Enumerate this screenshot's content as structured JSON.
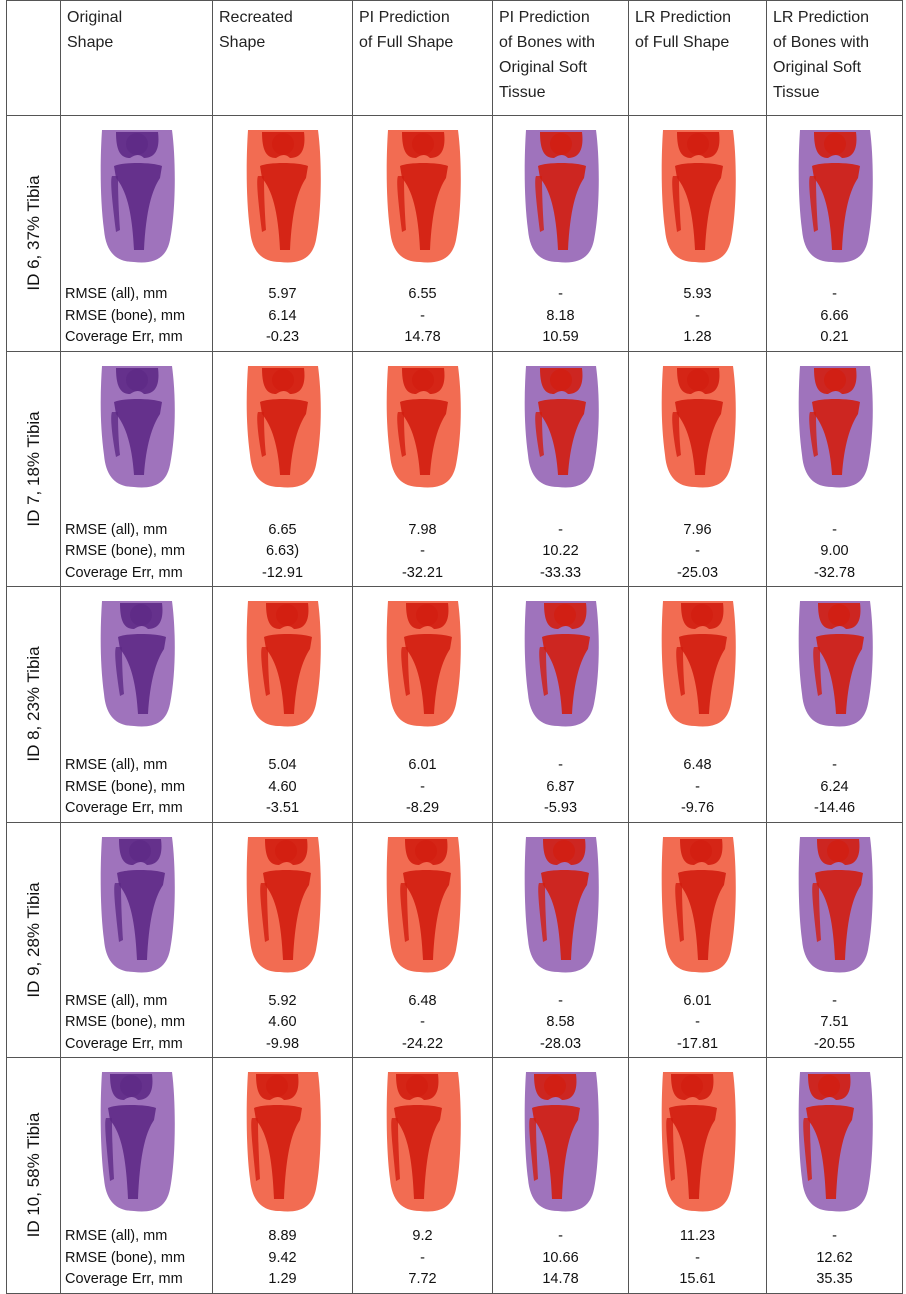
{
  "headers": [
    "Original\nShape",
    "Recreated\nShape",
    "PI Prediction\nof Full Shape",
    "PI Prediction\nof Bones with\nOriginal Soft\nTissue",
    "LR Prediction\nof Full Shape",
    "LR Prediction\nof Bones with\nOriginal Soft\nTissue"
  ],
  "metric_labels": [
    "RMSE (all), mm",
    "RMSE (bone), mm",
    "Coverage Err, mm"
  ],
  "rows": [
    {
      "label": "ID 6, 37% Tibia",
      "rmse_all": [
        "5.97",
        "6.55",
        "-",
        "5.93",
        "-"
      ],
      "rmse_bone": [
        "6.14",
        "-",
        "8.18",
        "-",
        "6.66"
      ],
      "coverage": [
        "-0.23",
        "14.78",
        "10.59",
        "1.28",
        "0.21"
      ]
    },
    {
      "label": "ID 7, 18% Tibia",
      "rmse_all": [
        "6.65",
        "7.98",
        "-",
        "7.96",
        "-"
      ],
      "rmse_bone": [
        "6.63)",
        "-",
        "10.22",
        "-",
        "9.00"
      ],
      "coverage": [
        "-12.91",
        "-32.21",
        "-33.33",
        "-25.03",
        "-32.78"
      ]
    },
    {
      "label": "ID 8, 23% Tibia",
      "rmse_all": [
        "5.04",
        "6.01",
        "-",
        "6.48",
        "-"
      ],
      "rmse_bone": [
        "4.60",
        "-",
        "6.87",
        "-",
        "6.24"
      ],
      "coverage": [
        "-3.51",
        "-8.29",
        "-5.93",
        "-9.76",
        "-14.46"
      ]
    },
    {
      "label": "ID 9, 28% Tibia",
      "rmse_all": [
        "5.92",
        "6.48",
        "-",
        "6.01",
        "-"
      ],
      "rmse_bone": [
        "4.60",
        "-",
        "8.58",
        "-",
        "7.51"
      ],
      "coverage": [
        "-9.98",
        "-24.22",
        "-28.03",
        "-17.81",
        "-20.55"
      ]
    },
    {
      "label": "ID 10, 58% Tibia",
      "rmse_all": [
        "8.89",
        "9.2",
        "-",
        "11.23",
        "-"
      ],
      "rmse_bone": [
        "9.42",
        "-",
        "10.66",
        "-",
        "12.62"
      ],
      "coverage": [
        "1.29",
        "7.72",
        "14.78",
        "15.61",
        "35.35"
      ]
    }
  ],
  "column_render_styles": [
    "purple-original",
    "red-full",
    "red-full",
    "purple-bones",
    "red-full",
    "purple-bones"
  ],
  "colors": {
    "purple_tissue": "#8e5bb0",
    "purple_bone": "#5e2a86",
    "red_tissue": "#f0583a",
    "red_bone": "#d21e10",
    "border": "#555555"
  }
}
